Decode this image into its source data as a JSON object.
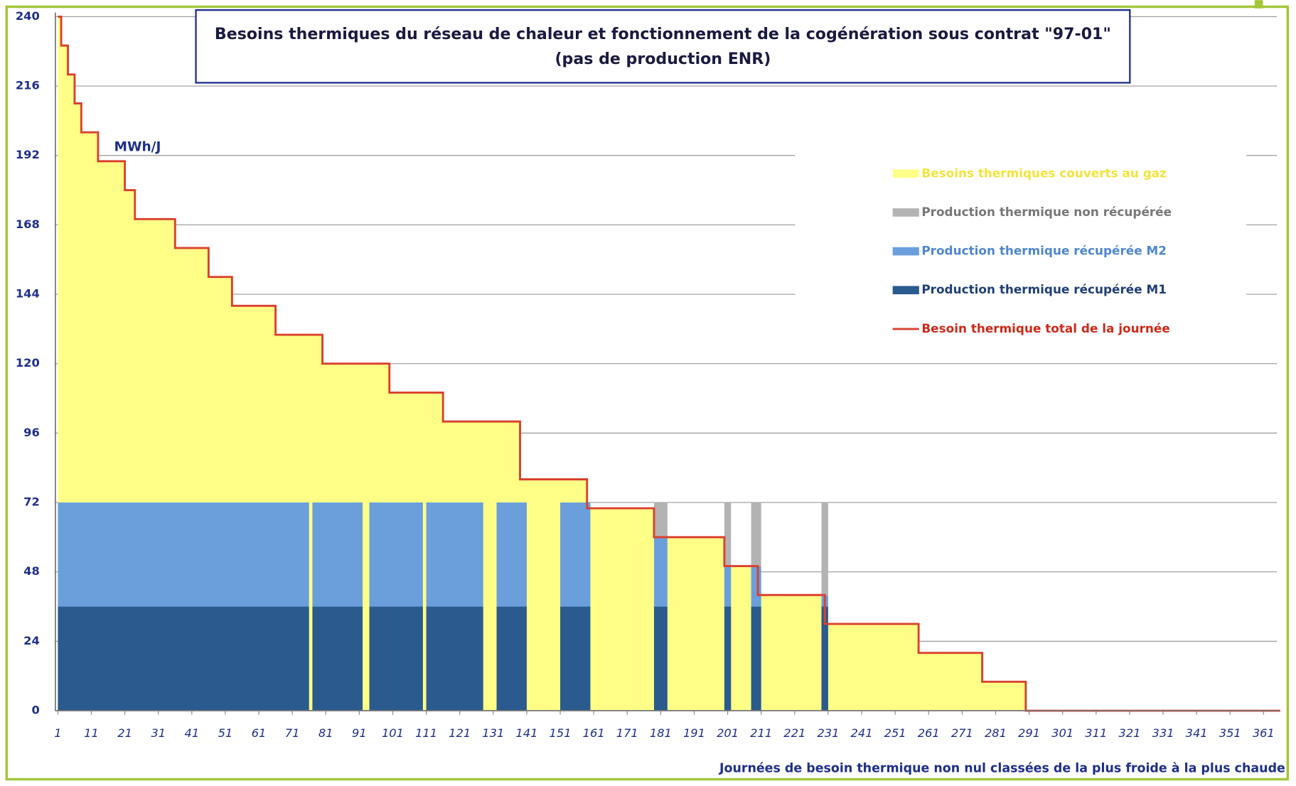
{
  "chart_data": {
    "type": "step-area",
    "title": "Besoins thermiques du réseau de chaleur et fonctionnement de la cogénération sous contrat \"97-01\"",
    "subtitle": "(pas de production ENR)",
    "y_label": "MWh/J",
    "x_label": "Journées de besoin thermique non nul classées de la plus froide à la plus chaude",
    "xlim": [
      1,
      366
    ],
    "xticks": [
      1,
      11,
      21,
      31,
      41,
      51,
      61,
      71,
      81,
      91,
      101,
      111,
      121,
      131,
      141,
      151,
      161,
      171,
      181,
      191,
      201,
      211,
      221,
      231,
      241,
      251,
      261,
      271,
      281,
      291,
      301,
      311,
      321,
      331,
      341,
      351,
      361
    ],
    "ylim": [
      0,
      240
    ],
    "yticks": [
      0,
      24,
      48,
      72,
      96,
      120,
      144,
      168,
      192,
      216,
      240
    ],
    "grid": true,
    "series": [
      {
        "name": "Besoins thermiques couverts au gaz",
        "color": "#ffff88"
      },
      {
        "name": "Production thermique non récupérée",
        "color": "#b3b3b3"
      },
      {
        "name": "Production thermique récupérée M2",
        "color": "#6a9fdc"
      },
      {
        "name": "Production thermique récupérée M1",
        "color": "#2a5a8e"
      },
      {
        "name": "Besoin thermique total de la journée",
        "color": "#d9412e",
        "x": [
          1,
          2,
          4,
          6,
          8,
          13,
          21,
          24,
          36,
          46,
          53,
          66,
          80,
          100,
          116,
          139,
          159,
          179,
          200,
          210,
          230,
          258,
          277,
          290
        ],
        "values": [
          240,
          230,
          220,
          210,
          200,
          190,
          180,
          170,
          160,
          150,
          140,
          130,
          120,
          110,
          100,
          80,
          70,
          60,
          50,
          40,
          30,
          20,
          10,
          0
        ]
      }
    ],
    "cogeneration_periods": [
      {
        "start": 1,
        "end": 76,
        "M1": 36,
        "M2": 36,
        "lost": 0
      },
      {
        "start": 77,
        "end": 92,
        "M1": 36,
        "M2": 36,
        "lost": 0
      },
      {
        "start": 94,
        "end": 110,
        "M1": 36,
        "M2": 36,
        "lost": 0
      },
      {
        "start": 111,
        "end": 128,
        "M1": 36,
        "M2": 36,
        "lost": 0
      },
      {
        "start": 132,
        "end": 141,
        "M1": 36,
        "M2": 36,
        "lost": 0
      },
      {
        "start": 151,
        "end": 160,
        "M1": 36,
        "M2": 36,
        "lost": 0
      },
      {
        "start": 179,
        "end": 183,
        "M1": 36,
        "M2": 24,
        "lost": 12
      },
      {
        "start": 200,
        "end": 202,
        "M1": 36,
        "M2": 14,
        "lost": 22
      },
      {
        "start": 208,
        "end": 211,
        "M1": 36,
        "M2": 14,
        "lost": 22
      },
      {
        "start": 229,
        "end": 231,
        "M1": 36,
        "M2": 4,
        "lost": 32
      }
    ]
  }
}
